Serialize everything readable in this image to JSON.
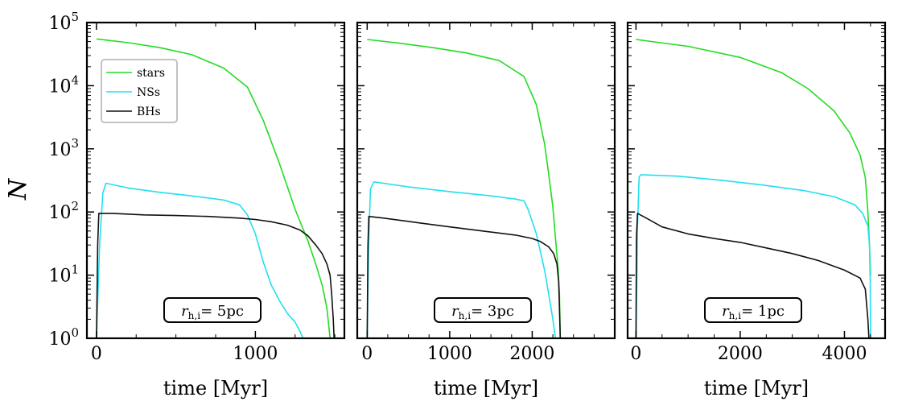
{
  "chart_data": {
    "type": "line",
    "y_scale": "log",
    "ylim": [
      1,
      100000
    ],
    "ylabel": "N",
    "y_tick_values": [
      1,
      10,
      100,
      1000,
      10000,
      100000
    ],
    "legend": {
      "placement": "upper-left of first panel",
      "entries": [
        {
          "name": "stars",
          "color": "#22dd22"
        },
        {
          "name": "NSs",
          "color": "#22e0f0"
        },
        {
          "name": "BHs",
          "color": "#111111"
        }
      ]
    },
    "panels": [
      {
        "annotation": {
          "symbol": "r",
          "subscript": "h,i",
          "text": "= 5pc"
        },
        "xlabel": "time [Myr]",
        "xlim": [
          -60,
          1560
        ],
        "x_ticks": [
          0,
          1000
        ],
        "series": [
          {
            "name": "stars",
            "color": "#22dd22",
            "points": [
              [
                0,
                55000
              ],
              [
                200,
                48000
              ],
              [
                400,
                40000
              ],
              [
                600,
                31000
              ],
              [
                800,
                19000
              ],
              [
                950,
                9500
              ],
              [
                1050,
                2800
              ],
              [
                1150,
                600
              ],
              [
                1250,
                110
              ],
              [
                1330,
                35
              ],
              [
                1380,
                15
              ],
              [
                1420,
                7
              ],
              [
                1450,
                3
              ],
              [
                1470,
                1
              ]
            ]
          },
          {
            "name": "NSs",
            "color": "#22e0f0",
            "points": [
              [
                0,
                1
              ],
              [
                20,
                30
              ],
              [
                40,
                200
              ],
              [
                60,
                285
              ],
              [
                200,
                240
              ],
              [
                400,
                205
              ],
              [
                600,
                180
              ],
              [
                800,
                155
              ],
              [
                900,
                130
              ],
              [
                950,
                90
              ],
              [
                1000,
                45
              ],
              [
                1050,
                16
              ],
              [
                1100,
                7
              ],
              [
                1150,
                4
              ],
              [
                1200,
                2.5
              ],
              [
                1250,
                1.8
              ],
              [
                1280,
                1.3
              ],
              [
                1300,
                1
              ]
            ]
          },
          {
            "name": "BHs",
            "color": "#111111",
            "points": [
              [
                0,
                1
              ],
              [
                8,
                30
              ],
              [
                15,
                95
              ],
              [
                100,
                95
              ],
              [
                300,
                90
              ],
              [
                500,
                88
              ],
              [
                700,
                85
              ],
              [
                900,
                80
              ],
              [
                1000,
                76
              ],
              [
                1100,
                70
              ],
              [
                1200,
                62
              ],
              [
                1280,
                52
              ],
              [
                1330,
                42
              ],
              [
                1380,
                30
              ],
              [
                1420,
                22
              ],
              [
                1450,
                15
              ],
              [
                1470,
                10
              ],
              [
                1480,
                5
              ],
              [
                1490,
                2
              ],
              [
                1495,
                1
              ]
            ]
          }
        ]
      },
      {
        "annotation": {
          "symbol": "r",
          "subscript": "h,i",
          "text": "= 3pc"
        },
        "xlabel": "time [Myr]",
        "xlim": [
          -120,
          3000
        ],
        "x_ticks": [
          0,
          1000,
          2000
        ],
        "series": [
          {
            "name": "stars",
            "color": "#22dd22",
            "points": [
              [
                0,
                54000
              ],
              [
                400,
                47000
              ],
              [
                800,
                40000
              ],
              [
                1200,
                33000
              ],
              [
                1600,
                25000
              ],
              [
                1900,
                14000
              ],
              [
                2050,
                5000
              ],
              [
                2150,
                1200
              ],
              [
                2200,
                400
              ],
              [
                2250,
                120
              ],
              [
                2280,
                40
              ],
              [
                2310,
                15
              ],
              [
                2330,
                5
              ],
              [
                2340,
                1
              ]
            ]
          },
          {
            "name": "NSs",
            "color": "#22e0f0",
            "points": [
              [
                0,
                1
              ],
              [
                20,
                40
              ],
              [
                40,
                230
              ],
              [
                80,
                300
              ],
              [
                500,
                250
              ],
              [
                1000,
                210
              ],
              [
                1500,
                180
              ],
              [
                1800,
                160
              ],
              [
                1900,
                150
              ],
              [
                1950,
                110
              ],
              [
                2050,
                45
              ],
              [
                2150,
                12
              ],
              [
                2200,
                5
              ],
              [
                2250,
                2
              ],
              [
                2280,
                1
              ]
            ]
          },
          {
            "name": "BHs",
            "color": "#111111",
            "points": [
              [
                0,
                1
              ],
              [
                10,
                30
              ],
              [
                20,
                85
              ],
              [
                200,
                80
              ],
              [
                600,
                68
              ],
              [
                1000,
                58
              ],
              [
                1400,
                50
              ],
              [
                1800,
                43
              ],
              [
                2000,
                38
              ],
              [
                2100,
                34
              ],
              [
                2200,
                28
              ],
              [
                2260,
                22
              ],
              [
                2300,
                15
              ],
              [
                2320,
                8
              ],
              [
                2330,
                3
              ],
              [
                2340,
                1
              ]
            ]
          }
        ]
      },
      {
        "annotation": {
          "symbol": "r",
          "subscript": "h,i",
          "text": "= 1pc"
        },
        "xlabel": "time [Myr]",
        "xlim": [
          -160,
          4780
        ],
        "x_ticks": [
          0,
          2000,
          4000
        ],
        "series": [
          {
            "name": "stars",
            "color": "#22dd22",
            "points": [
              [
                0,
                54000
              ],
              [
                1000,
                42000
              ],
              [
                2000,
                28000
              ],
              [
                2800,
                16000
              ],
              [
                3300,
                9000
              ],
              [
                3800,
                4000
              ],
              [
                4100,
                1800
              ],
              [
                4300,
                800
              ],
              [
                4400,
                350
              ],
              [
                4450,
                100
              ],
              [
                4480,
                30
              ],
              [
                4500,
                10
              ]
            ]
          },
          {
            "name": "NSs",
            "color": "#22e0f0",
            "points": [
              [
                0,
                1
              ],
              [
                30,
                60
              ],
              [
                60,
                360
              ],
              [
                100,
                390
              ],
              [
                800,
                370
              ],
              [
                1600,
                320
              ],
              [
                2400,
                270
              ],
              [
                3200,
                220
              ],
              [
                3800,
                175
              ],
              [
                4200,
                130
              ],
              [
                4350,
                95
              ],
              [
                4450,
                60
              ],
              [
                4480,
                30
              ],
              [
                4495,
                8
              ],
              [
                4500,
                1
              ]
            ]
          },
          {
            "name": "BHs",
            "color": "#111111",
            "points": [
              [
                0,
                1
              ],
              [
                10,
                40
              ],
              [
                30,
                95
              ],
              [
                200,
                80
              ],
              [
                500,
                58
              ],
              [
                1000,
                45
              ],
              [
                1500,
                38
              ],
              [
                2000,
                33
              ],
              [
                2500,
                27
              ],
              [
                3000,
                22
              ],
              [
                3500,
                17
              ],
              [
                4000,
                12
              ],
              [
                4300,
                9
              ],
              [
                4400,
                6
              ],
              [
                4450,
                2
              ],
              [
                4470,
                1
              ]
            ]
          }
        ]
      }
    ]
  }
}
